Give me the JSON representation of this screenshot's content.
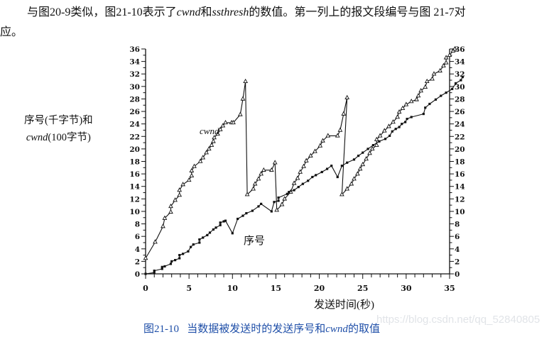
{
  "intro": {
    "line1_a": "与图20-9类似，图21-10表示了",
    "line1_cwnd": "cwnd",
    "line1_b": "和",
    "line1_ssthresh": "ssthresh",
    "line1_c": "的数值。第一列上的报文段编号与图 21-7对",
    "line2": "应。"
  },
  "watermark": "https://blog.csdn.net/qq_52840805",
  "chart_data": {
    "type": "line",
    "title": "",
    "caption": {
      "fig_no": "图21-10",
      "text_a": "当数据被发送时的发送序号和",
      "text_cwnd": "cwnd",
      "text_b": "的取值"
    },
    "xlabel": "发送时间(秒)",
    "ylabel_line1": "序号(千字节)和",
    "ylabel_line2_italic": "cwnd",
    "ylabel_line2_rest": "(100字节)",
    "xlim": [
      0,
      35
    ],
    "ylim": [
      0,
      36
    ],
    "x_ticks": [
      "0",
      "5",
      "10",
      "15",
      "20",
      "25",
      "30",
      "35"
    ],
    "y_ticks": [
      "0",
      "2",
      "4",
      "6",
      "8",
      "10",
      "12",
      "14",
      "16",
      "18",
      "20",
      "22",
      "24",
      "26",
      "28",
      "30",
      "32",
      "34",
      "36"
    ],
    "y_axis_right_duplicate": true,
    "grid": false,
    "legend": "inline labels",
    "annotations": [
      {
        "text": "cwnd",
        "x": 6.3,
        "y": 22.8,
        "italic": true
      },
      {
        "text": "序号",
        "x": 11.3,
        "y": 5.8
      }
    ],
    "series": [
      {
        "name": "cwnd",
        "marker": "triangle",
        "points": [
          [
            0,
            2.5
          ],
          [
            1.1,
            5.1
          ],
          [
            2,
            7.6
          ],
          [
            2.2,
            8.9
          ],
          [
            2.9,
            9.9
          ],
          [
            2.9,
            10.8
          ],
          [
            3.4,
            11.8
          ],
          [
            3.9,
            12.6
          ],
          [
            3.9,
            13.4
          ],
          [
            4.3,
            14.3
          ],
          [
            5,
            15
          ],
          [
            5.3,
            15.7
          ],
          [
            5.3,
            16.5
          ],
          [
            5.6,
            17.2
          ],
          [
            6.3,
            18
          ],
          [
            6.6,
            18.6
          ],
          [
            7,
            19.4
          ],
          [
            7.3,
            20
          ],
          [
            7.6,
            20.6
          ],
          [
            7.8,
            21.2
          ],
          [
            7.9,
            21.8
          ],
          [
            8.3,
            22.4
          ],
          [
            8.6,
            23.1
          ],
          [
            8.9,
            23.7
          ],
          [
            9.2,
            24.2
          ],
          [
            9.9,
            24.2
          ],
          [
            10.1,
            24.2
          ],
          [
            10.9,
            25.5
          ],
          [
            11.2,
            28
          ],
          [
            11.5,
            30.8
          ],
          [
            11.7,
            12.7
          ],
          [
            12.4,
            13.6
          ],
          [
            12.6,
            14.4
          ],
          [
            13,
            15.2
          ],
          [
            13.3,
            16
          ],
          [
            13.6,
            16.6
          ],
          [
            14.5,
            16.6
          ],
          [
            14.9,
            17.8
          ],
          [
            15.1,
            10.2
          ],
          [
            15.7,
            11.1
          ],
          [
            16,
            12
          ],
          [
            16.7,
            13.1
          ],
          [
            17.1,
            14.5
          ],
          [
            17.5,
            15.3
          ],
          [
            17.8,
            16.3
          ],
          [
            18.2,
            17.2
          ],
          [
            18.5,
            18.1
          ],
          [
            19,
            18.9
          ],
          [
            19.5,
            19.6
          ],
          [
            20.1,
            20.5
          ],
          [
            20.4,
            21.3
          ],
          [
            21,
            22.1
          ],
          [
            22.1,
            22.1
          ],
          [
            22.4,
            23
          ],
          [
            22.8,
            25.6
          ],
          [
            23.2,
            28.2
          ],
          [
            22.6,
            12.7
          ],
          [
            23.2,
            13.6
          ],
          [
            23.7,
            14.4
          ],
          [
            24,
            15.2
          ],
          [
            24.4,
            16
          ],
          [
            24.7,
            16.8
          ],
          [
            25,
            17.5
          ],
          [
            25.4,
            18.4
          ],
          [
            25.8,
            19.3
          ],
          [
            26.1,
            20
          ],
          [
            26.6,
            20.6
          ],
          [
            26.6,
            21.5
          ],
          [
            27,
            22.1
          ],
          [
            27.5,
            22.9
          ],
          [
            28,
            23.6
          ],
          [
            28.5,
            24.3
          ],
          [
            29,
            25.1
          ],
          [
            29.2,
            25.9
          ],
          [
            29.6,
            26.5
          ],
          [
            30,
            27.1
          ],
          [
            30.6,
            27.6
          ],
          [
            31.2,
            27.9
          ],
          [
            31.4,
            28.5
          ],
          [
            31.7,
            29.3
          ],
          [
            32.2,
            29.9
          ],
          [
            32.4,
            30.8
          ],
          [
            33,
            31.2
          ],
          [
            33.2,
            32
          ],
          [
            33.9,
            32.5
          ],
          [
            34.3,
            33.3
          ],
          [
            34.6,
            33.8
          ],
          [
            34.6,
            34.6
          ],
          [
            35,
            35
          ],
          [
            35.4,
            35.7
          ],
          [
            35.6,
            36
          ]
        ]
      },
      {
        "name": "序号",
        "marker": "square",
        "points": [
          [
            0,
            0
          ],
          [
            1,
            0.2
          ],
          [
            1,
            0.5
          ],
          [
            1.9,
            0.8
          ],
          [
            1.9,
            1.1
          ],
          [
            2.2,
            1.2
          ],
          [
            2.9,
            1.6
          ],
          [
            3,
            2
          ],
          [
            3.4,
            2.2
          ],
          [
            3.9,
            2.5
          ],
          [
            3.9,
            3
          ],
          [
            4.3,
            3.2
          ],
          [
            4.9,
            3.6
          ],
          [
            5.2,
            4.3
          ],
          [
            5.5,
            4.7
          ],
          [
            6.2,
            5
          ],
          [
            6.2,
            5.5
          ],
          [
            6.6,
            5.8
          ],
          [
            7.1,
            6.2
          ],
          [
            7.4,
            6.6
          ],
          [
            7.8,
            7.1
          ],
          [
            8.1,
            7.4
          ],
          [
            8.6,
            7.8
          ],
          [
            8.6,
            8.2
          ],
          [
            9,
            8.4
          ],
          [
            9.2,
            8.5
          ],
          [
            10,
            6.5
          ],
          [
            10.6,
            8.8
          ],
          [
            11.2,
            9.3
          ],
          [
            11.6,
            9.7
          ],
          [
            12.3,
            10.1
          ],
          [
            13,
            10.8
          ],
          [
            13.3,
            11.2
          ],
          [
            14.5,
            10
          ],
          [
            14.8,
            11.5
          ],
          [
            15.3,
            11.7
          ],
          [
            15.3,
            12.2
          ],
          [
            16.3,
            12.8
          ],
          [
            16.5,
            13.1
          ],
          [
            17.1,
            13.4
          ],
          [
            17.6,
            13.9
          ],
          [
            18.1,
            14.4
          ],
          [
            18.7,
            14.9
          ],
          [
            19.2,
            15.5
          ],
          [
            19.6,
            15.8
          ],
          [
            20.3,
            16.3
          ],
          [
            20.9,
            16.8
          ],
          [
            21.4,
            17.3
          ],
          [
            22.1,
            15.5
          ],
          [
            22.6,
            17.3
          ],
          [
            23.2,
            17.8
          ],
          [
            24,
            18.3
          ],
          [
            24.5,
            18.9
          ],
          [
            25,
            19.4
          ],
          [
            25.6,
            20
          ],
          [
            26.2,
            20.6
          ],
          [
            26.9,
            21.2
          ],
          [
            27.6,
            21.6
          ],
          [
            28.1,
            22.1
          ],
          [
            28.4,
            22.8
          ],
          [
            28.8,
            23.2
          ],
          [
            29.2,
            23.5
          ],
          [
            29.5,
            24
          ],
          [
            29.9,
            24.3
          ],
          [
            30.1,
            24.8
          ],
          [
            30.6,
            25.1
          ],
          [
            32,
            25.6
          ],
          [
            32.2,
            26.6
          ],
          [
            32.7,
            27.2
          ],
          [
            33.4,
            27.9
          ],
          [
            34,
            28.5
          ],
          [
            34.6,
            29
          ],
          [
            35.3,
            29.6
          ],
          [
            35.7,
            30.5
          ],
          [
            36.3,
            31
          ],
          [
            36.5,
            31.5
          ]
        ]
      }
    ]
  }
}
